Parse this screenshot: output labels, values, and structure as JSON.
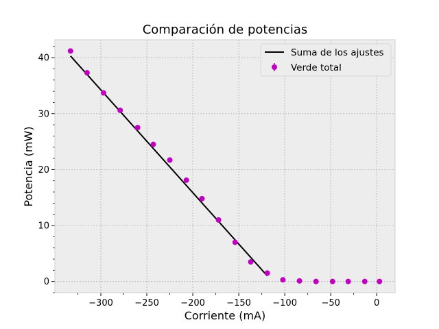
{
  "chart_data": {
    "type": "scatter",
    "title": "Comparación de potencias",
    "xlabel": "Corriente (mA)",
    "ylabel": "Potencia (mW)",
    "xlim": [
      -350,
      20
    ],
    "ylim": [
      -2,
      43.2
    ],
    "xticks": [
      -300,
      -250,
      -200,
      -150,
      -100,
      -50,
      0
    ],
    "xtick_labels": [
      "−300",
      "−250",
      "−200",
      "−150",
      "−100",
      "−50",
      "0"
    ],
    "yticks": [
      0,
      10,
      20,
      30,
      40
    ],
    "ytick_labels": [
      "0",
      "10",
      "20",
      "30",
      "40"
    ],
    "grid": true,
    "legend_position": "upper right",
    "series": [
      {
        "name": "Suma de los ajustes",
        "kind": "line",
        "color": "#000000",
        "x": [
          -333,
          -119
        ],
        "y": [
          40.3,
          1.0
        ]
      },
      {
        "name": "Verde total",
        "kind": "scatter",
        "color": "#c000c0",
        "x": [
          -333,
          -315,
          -297,
          -279,
          -260,
          -243,
          -225,
          -207,
          -190,
          -172,
          -154,
          -137,
          -119,
          -102,
          -84,
          -66,
          -48,
          -31,
          -13,
          3
        ],
        "y": [
          41.2,
          37.3,
          33.7,
          30.6,
          27.5,
          24.5,
          21.7,
          18.1,
          14.8,
          11.0,
          7.0,
          3.5,
          1.5,
          0.3,
          0.1,
          0.0,
          0.0,
          0.0,
          0.0,
          0.0
        ]
      }
    ]
  }
}
